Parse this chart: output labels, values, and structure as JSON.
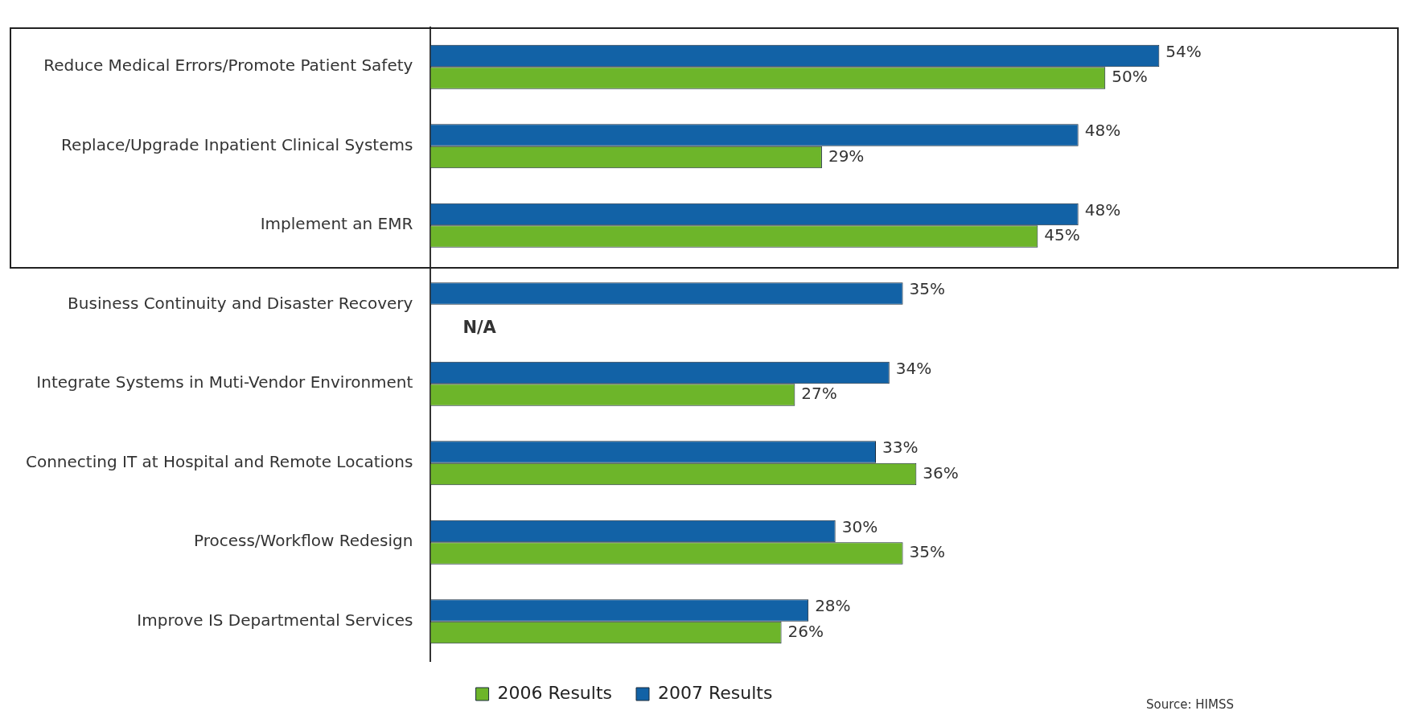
{
  "chart_data": {
    "type": "bar",
    "orientation": "horizontal",
    "categories": [
      "Reduce Medical Errors/Promote Patient Safety",
      "Replace/Upgrade Inpatient Clinical Systems",
      "Implement an EMR",
      "Business Continuity and Disaster Recovery",
      "Integrate Systems in Muti-Vendor Environment",
      "Connecting IT at Hospital and Remote Locations",
      "Process/Workflow Redesign",
      "Improve IS Departmental Services"
    ],
    "series": [
      {
        "name": "2006 Results",
        "color": "#6db52a",
        "values": [
          50,
          29,
          45,
          null,
          27,
          36,
          35,
          26
        ],
        "value_labels": [
          "50%",
          "29%",
          "45%",
          null,
          "27%",
          "36%",
          "35%",
          "26%"
        ]
      },
      {
        "name": "2007 Results",
        "color": "#1262a6",
        "values": [
          54,
          48,
          48,
          35,
          34,
          33,
          30,
          28
        ],
        "value_labels": [
          "54%",
          "48%",
          "48%",
          "35%",
          "34%",
          "33%",
          "30%",
          "28%"
        ]
      }
    ],
    "tick_labels": "y",
    "grid": false,
    "legend": "bottom",
    "annotations": [
      "Source:  HIMSS",
      {
        "text": "N/A",
        "y": "Business Continuity and Disaster Recovery"
      }
    ]
  }
}
